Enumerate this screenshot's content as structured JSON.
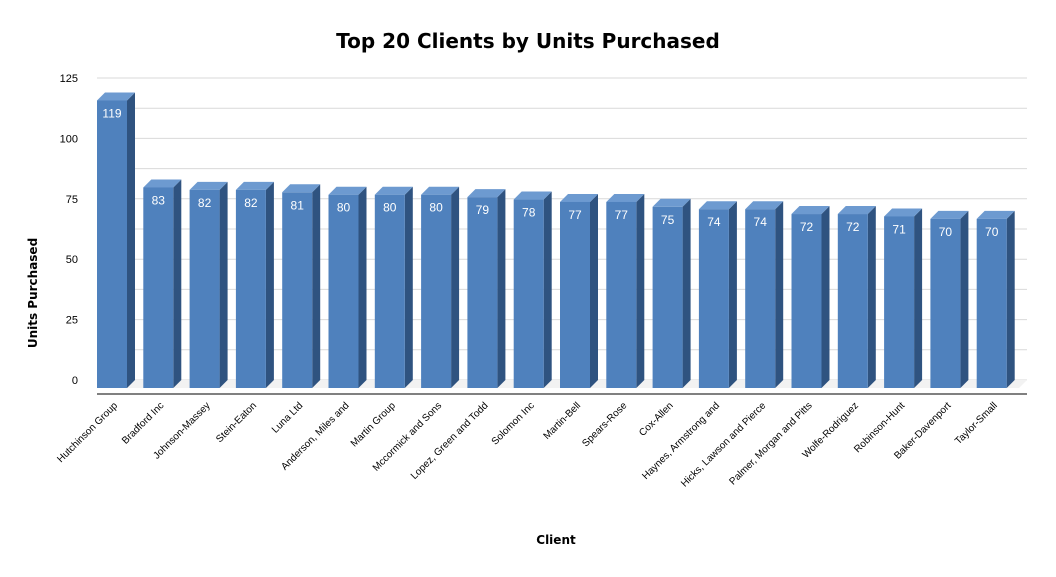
{
  "chart_data": {
    "type": "bar",
    "title": "Top 20 Clients by Units Purchased",
    "xlabel": "Client",
    "ylabel": "Units Purchased",
    "ylim": [
      0,
      125
    ],
    "yticks": [
      0,
      25,
      50,
      75,
      100,
      125
    ],
    "grid": true,
    "legend": "none",
    "style": "3d-column",
    "colors": {
      "bar_front": "#4f81bd",
      "bar_top": "#6d9ad0",
      "bar_side": "#2f5380",
      "grid": "#d9d9d9"
    },
    "categories": [
      "Hutchinson Group",
      "Bradford Inc",
      "Johnson-Massey",
      "Stein-Eaton",
      "Luna Ltd",
      "Anderson, Miles and",
      "Martin Group",
      "Mccormick and Sons",
      "Lopez, Green and Todd",
      "Solomon Inc",
      "Martin-Bell",
      "Spears-Rose",
      "Cox-Allen",
      "Haynes, Armstrong and",
      "Hicks, Lawson and Pierce",
      "Palmer, Morgan and Pitts",
      "Wolfe-Rodriguez",
      "Robinson-Hunt",
      "Baker-Davenport",
      "Taylor-Small"
    ],
    "values": [
      119,
      83,
      82,
      82,
      81,
      80,
      80,
      80,
      79,
      78,
      77,
      77,
      75,
      74,
      74,
      72,
      72,
      71,
      70,
      70
    ]
  }
}
